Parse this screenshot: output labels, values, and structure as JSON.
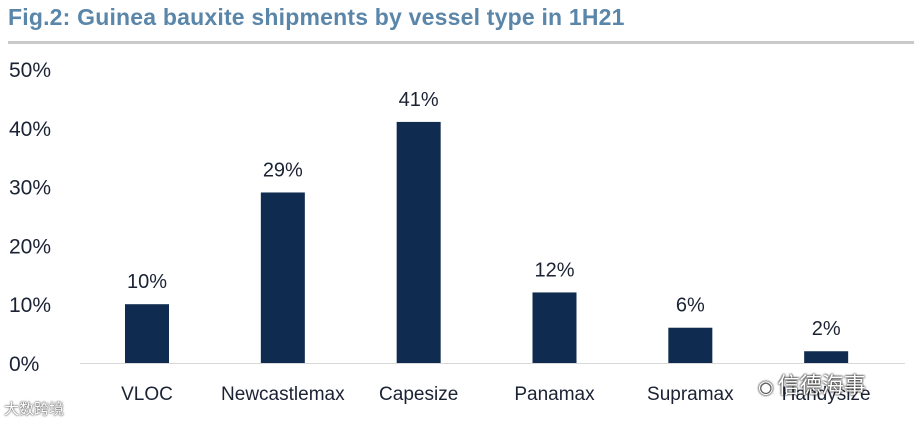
{
  "chart_data": {
    "type": "bar",
    "title": "Fig.2: Guinea bauxite shipments by vessel type in 1H21",
    "categories": [
      "VLOC",
      "Newcastlemax",
      "Capesize",
      "Panamax",
      "Supramax",
      "Handysize"
    ],
    "values": [
      10,
      29,
      41,
      12,
      6,
      2
    ],
    "data_labels": [
      "10%",
      "29%",
      "41%",
      "12%",
      "6%",
      "2%"
    ],
    "y_ticks": [
      0,
      10,
      20,
      30,
      40,
      50
    ],
    "y_tick_labels": [
      "0%",
      "10%",
      "20%",
      "30%",
      "40%",
      "50%"
    ],
    "ylim": [
      0,
      50
    ],
    "xlabel": "",
    "ylabel": "",
    "grid": false,
    "legend": "none",
    "bar_color": "#0f2b4f"
  },
  "watermarks": {
    "left": "大数跨境",
    "right": "信德海事"
  }
}
